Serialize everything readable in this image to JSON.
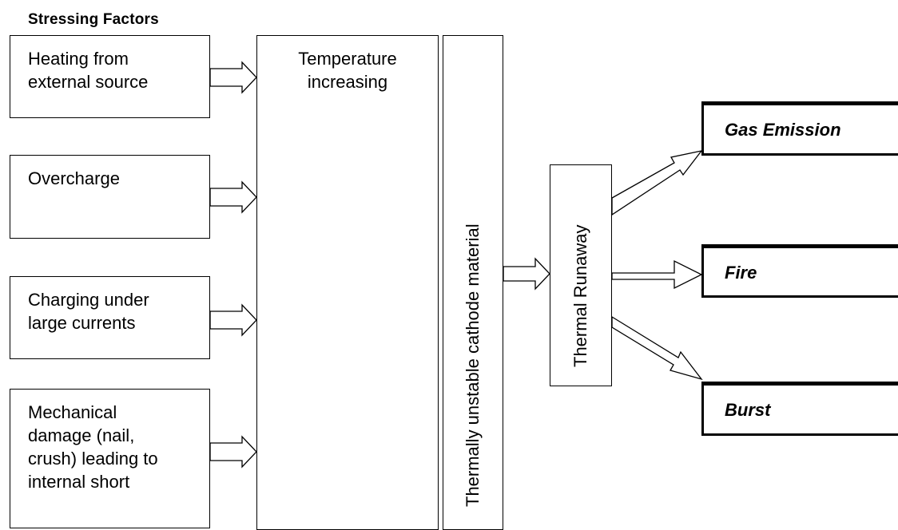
{
  "title": "Stressing Factors",
  "stressing_factors": [
    {
      "label": "Heating from\nexternal source"
    },
    {
      "label": "Overcharge"
    },
    {
      "label": "Charging under\nlarge currents"
    },
    {
      "label": "Mechanical\ndamage (nail,\ncrush) leading to\ninternal short"
    }
  ],
  "temperature_box": {
    "label": "Temperature\nincreasing"
  },
  "cathode_box": {
    "label": "Thermally unstable cathode material"
  },
  "runaway_box": {
    "label": "Thermal Runaway"
  },
  "outcomes": [
    {
      "label": "Gas Emission"
    },
    {
      "label": "Fire"
    },
    {
      "label": "Burst"
    }
  ]
}
